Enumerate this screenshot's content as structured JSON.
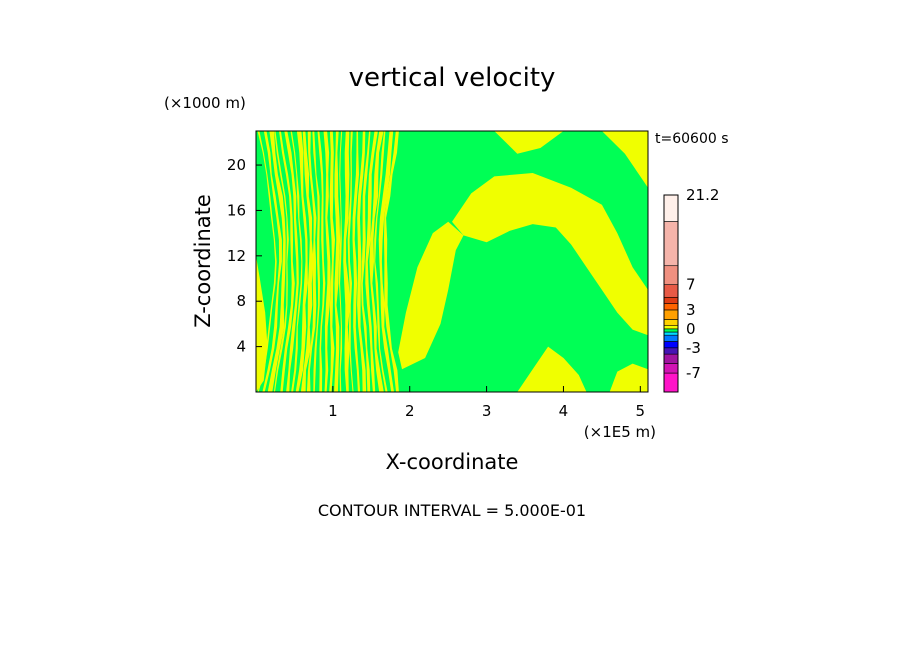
{
  "chart_data": {
    "type": "heatmap",
    "title": "vertical velocity",
    "xlabel": "X-coordinate",
    "ylabel": "Z-coordinate",
    "x_unit": "(×1E5 m)",
    "y_unit": "(×1000 m)",
    "time_label": "t=60600 s",
    "footer": "CONTOUR INTERVAL = 5.000E-01",
    "xlim": [
      0,
      5.1
    ],
    "ylim": [
      0,
      23
    ],
    "x_ticks": [
      {
        "value": 1,
        "label": "1"
      },
      {
        "value": 2,
        "label": "2"
      },
      {
        "value": 3,
        "label": "3"
      },
      {
        "value": 4,
        "label": "4"
      },
      {
        "value": 5,
        "label": "5"
      }
    ],
    "y_ticks": [
      {
        "value": 4,
        "label": "4"
      },
      {
        "value": 8,
        "label": "8"
      },
      {
        "value": 12,
        "label": "12"
      },
      {
        "value": 16,
        "label": "16"
      },
      {
        "value": 20,
        "label": "20"
      }
    ],
    "field_colors": {
      "positive": "#f0ff00",
      "negative": "#00ff55"
    },
    "colorbar": {
      "vmin": -10,
      "vmax": 21.2,
      "bands": [
        {
          "from": -10,
          "to": -7,
          "color": "#ff14c8"
        },
        {
          "from": -7,
          "to": -5.5,
          "color": "#d214b4"
        },
        {
          "from": -5.5,
          "to": -4,
          "color": "#a014a0"
        },
        {
          "from": -4,
          "to": -3,
          "color": "#4614b4"
        },
        {
          "from": -3,
          "to": -2,
          "color": "#0000ff"
        },
        {
          "from": -2,
          "to": -1,
          "color": "#0078ff"
        },
        {
          "from": -1,
          "to": -0.5,
          "color": "#00dcff"
        },
        {
          "from": -0.5,
          "to": 0,
          "color": "#00ff55"
        },
        {
          "from": 0,
          "to": 0.5,
          "color": "#f0ff00"
        },
        {
          "from": 0.5,
          "to": 1.5,
          "color": "#ffd200"
        },
        {
          "from": 1.5,
          "to": 3,
          "color": "#ffa000"
        },
        {
          "from": 3,
          "to": 4,
          "color": "#ff6400"
        },
        {
          "from": 4,
          "to": 5,
          "color": "#e03c14"
        },
        {
          "from": 5,
          "to": 7,
          "color": "#e85a46"
        },
        {
          "from": 7,
          "to": 10,
          "color": "#f09080"
        },
        {
          "from": 10,
          "to": 17,
          "color": "#f5b4aa"
        },
        {
          "from": 17,
          "to": 21.2,
          "color": "#fff0ea"
        }
      ],
      "labels": [
        {
          "value": 21.2,
          "label": "21.2"
        },
        {
          "value": 7,
          "label": "7"
        },
        {
          "value": 3,
          "label": "3"
        },
        {
          "value": 0,
          "label": "0"
        },
        {
          "value": -3,
          "label": "-3"
        },
        {
          "value": -7,
          "label": "-7"
        }
      ]
    }
  }
}
